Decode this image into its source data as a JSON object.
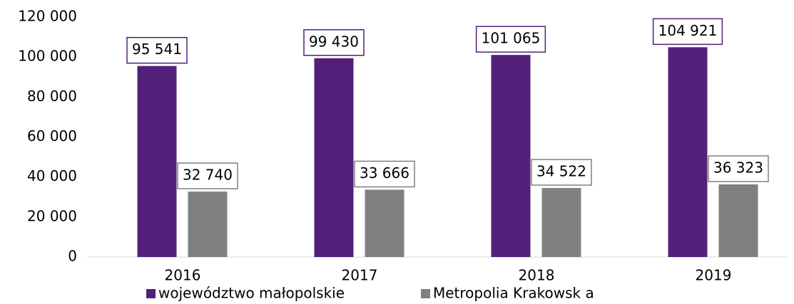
{
  "chart_data": {
    "type": "bar",
    "categories": [
      "2016",
      "2017",
      "2018",
      "2019"
    ],
    "series": [
      {
        "name": "województwo małopolskie",
        "color": "#522079",
        "values": [
          95541,
          99430,
          101065,
          104921
        ],
        "value_labels": [
          "95 541",
          "99 430",
          "101 065",
          "104 921"
        ]
      },
      {
        "name": "Metropolia Krakowsk a",
        "color": "#808080",
        "values": [
          32740,
          33666,
          34522,
          36323
        ],
        "value_labels": [
          "32 740",
          "33 666",
          "34 522",
          "36 323"
        ]
      }
    ],
    "ylim": [
      0,
      120000
    ],
    "yticks": [
      {
        "value": 0,
        "label": "0"
      },
      {
        "value": 20000,
        "label": "20 000"
      },
      {
        "value": 40000,
        "label": "40 000"
      },
      {
        "value": 60000,
        "label": "60 000"
      },
      {
        "value": 80000,
        "label": "80 000"
      },
      {
        "value": 100000,
        "label": "100 000"
      },
      {
        "value": 120000,
        "label": "120 000"
      }
    ],
    "legend": "bottom"
  }
}
